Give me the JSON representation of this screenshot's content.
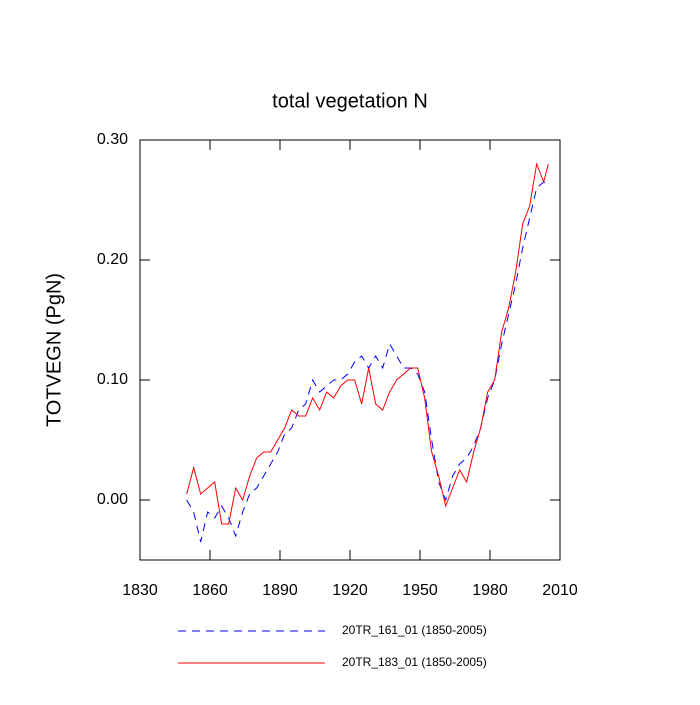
{
  "chart_data": {
    "type": "line",
    "title": "total vegetation N",
    "y_label": "TOTVEGN  (PgN)",
    "x": [
      1850,
      1853,
      1856,
      1859,
      1862,
      1865,
      1868,
      1871,
      1874,
      1877,
      1880,
      1883,
      1886,
      1889,
      1892,
      1895,
      1898,
      1901,
      1904,
      1907,
      1910,
      1913,
      1916,
      1919,
      1922,
      1925,
      1928,
      1931,
      1934,
      1937,
      1940,
      1943,
      1946,
      1949,
      1952,
      1955,
      1958,
      1961,
      1964,
      1967,
      1970,
      1973,
      1976,
      1979,
      1982,
      1985,
      1988,
      1991,
      1994,
      1997,
      2000,
      2003,
      2005
    ],
    "series": [
      {
        "name": "20TR_161_01 (1850-2005)",
        "color": "#0000ff",
        "dashed": true,
        "values": [
          0.0,
          -0.01,
          -0.035,
          -0.01,
          -0.015,
          -0.005,
          -0.015,
          -0.03,
          -0.01,
          0.005,
          0.01,
          0.02,
          0.03,
          0.04,
          0.055,
          0.06,
          0.075,
          0.08,
          0.1,
          0.09,
          0.095,
          0.1,
          0.1,
          0.105,
          0.115,
          0.12,
          0.11,
          0.12,
          0.11,
          0.13,
          0.12,
          0.11,
          0.11,
          0.105,
          0.09,
          0.05,
          0.015,
          0.0,
          0.02,
          0.03,
          0.035,
          0.045,
          0.06,
          0.085,
          0.1,
          0.13,
          0.155,
          0.18,
          0.21,
          0.235,
          0.26,
          0.265,
          0.262
        ]
      },
      {
        "name": "20TR_183_01 (1850-2005)",
        "color": "#ff0000",
        "dashed": false,
        "values": [
          0.005,
          0.027,
          0.005,
          0.01,
          0.015,
          -0.02,
          -0.02,
          0.01,
          0.0,
          0.02,
          0.035,
          0.04,
          0.04,
          0.05,
          0.06,
          0.075,
          0.07,
          0.07,
          0.085,
          0.075,
          0.09,
          0.085,
          0.095,
          0.1,
          0.1,
          0.08,
          0.11,
          0.08,
          0.075,
          0.09,
          0.1,
          0.105,
          0.11,
          0.11,
          0.085,
          0.04,
          0.02,
          -0.005,
          0.01,
          0.025,
          0.015,
          0.04,
          0.06,
          0.09,
          0.1,
          0.14,
          0.16,
          0.19,
          0.23,
          0.245,
          0.28,
          0.265,
          0.28
        ]
      }
    ],
    "xlim": [
      1830,
      2010
    ],
    "xticks": [
      1830,
      1860,
      1890,
      1920,
      1950,
      1980,
      2010
    ],
    "ylim": [
      -0.05,
      0.3
    ],
    "yticks": [
      {
        "value": 0,
        "label": "0.00"
      },
      {
        "value": 0.1,
        "label": "0.10"
      },
      {
        "value": 0.2,
        "label": "0.20"
      },
      {
        "value": 0.3,
        "label": "0.30"
      }
    ],
    "legend": "bottom"
  }
}
